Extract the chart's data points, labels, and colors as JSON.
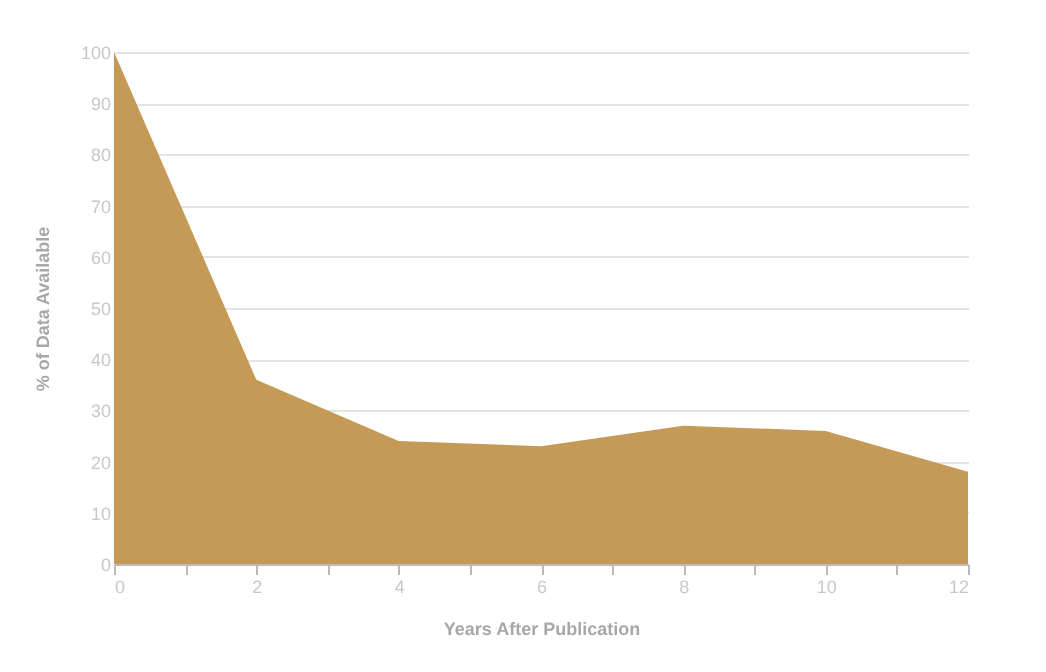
{
  "chart_data": {
    "type": "area",
    "xlabel": "Years After Publication",
    "ylabel": "% of  Data Available",
    "x": [
      0,
      2,
      4,
      6,
      8,
      10,
      12
    ],
    "series": [
      {
        "color": "#c49a56",
        "values": [
          100,
          36,
          24,
          23,
          27,
          26,
          18
        ]
      }
    ],
    "xlim": [
      0,
      12
    ],
    "xticks": [
      0,
      {
        "value": 1,
        "label": null
      },
      2,
      {
        "value": 3,
        "label": null
      },
      4,
      {
        "value": 5,
        "label": null
      },
      6,
      {
        "value": 7,
        "label": null
      },
      8,
      {
        "value": 9,
        "label": null
      },
      10,
      {
        "value": 11,
        "label": null
      },
      12
    ],
    "ylim": [
      0,
      100
    ],
    "yticks": [
      0,
      10,
      20,
      30,
      40,
      50,
      60,
      70,
      80,
      90,
      100
    ],
    "grid": "y"
  }
}
